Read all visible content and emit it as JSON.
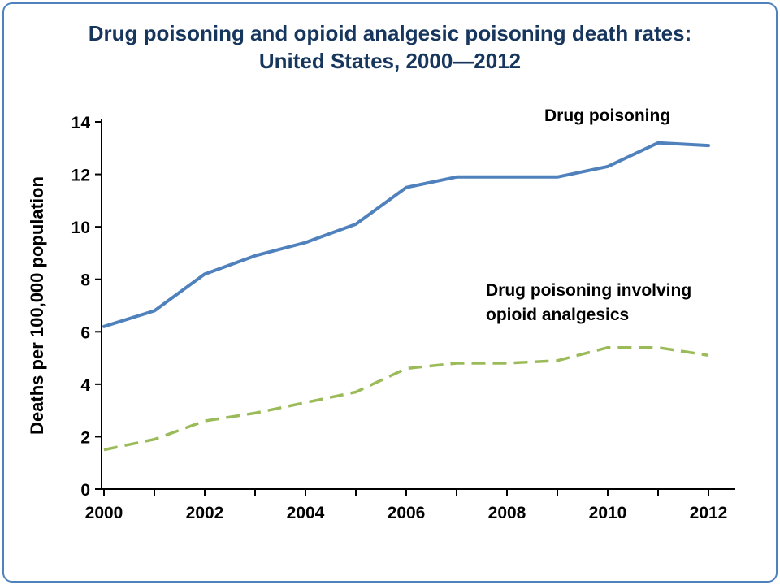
{
  "title": {
    "line1": "Drug poisoning and opioid analgesic poisoning death rates:",
    "line2": "United States, 2000—2012"
  },
  "annotations": {
    "drug_poisoning": "Drug poisoning",
    "opioid_line1": "Drug poisoning involving",
    "opioid_line2": "opioid analgesics"
  },
  "colors": {
    "border": "#4F81BD",
    "title_text": "#17365D",
    "axis": "#000000",
    "drug_poisoning_line": "#4F81BD",
    "opioid_line": "#9BBB59"
  },
  "chart_data": {
    "type": "line",
    "title": "Drug poisoning and opioid analgesic poisoning death rates: United States, 2000—2012",
    "ylabel": "Deaths per 100,000 population",
    "xlabel": "",
    "ylim": [
      0,
      14
    ],
    "yticks": [
      0,
      2,
      4,
      6,
      8,
      10,
      12,
      14
    ],
    "xticks": [
      2000,
      2002,
      2004,
      2006,
      2008,
      2010,
      2012
    ],
    "x": [
      2000,
      2001,
      2002,
      2003,
      2004,
      2005,
      2006,
      2007,
      2008,
      2009,
      2010,
      2011,
      2012
    ],
    "grid": false,
    "legend_position": "annotations-on-chart",
    "series": [
      {
        "id": "drug-poisoning",
        "name": "Drug poisoning",
        "color": "#4F81BD",
        "style": "solid",
        "values": [
          6.2,
          6.8,
          8.2,
          8.9,
          9.4,
          10.1,
          11.5,
          11.9,
          11.9,
          11.9,
          12.3,
          13.2,
          13.1
        ]
      },
      {
        "id": "opioid-analgesics",
        "name": "Drug poisoning involving opioid analgesics",
        "color": "#9BBB59",
        "style": "dashed",
        "values": [
          1.5,
          1.9,
          2.6,
          2.9,
          3.3,
          3.7,
          4.6,
          4.8,
          4.8,
          4.9,
          5.4,
          5.4,
          5.1
        ]
      }
    ]
  }
}
